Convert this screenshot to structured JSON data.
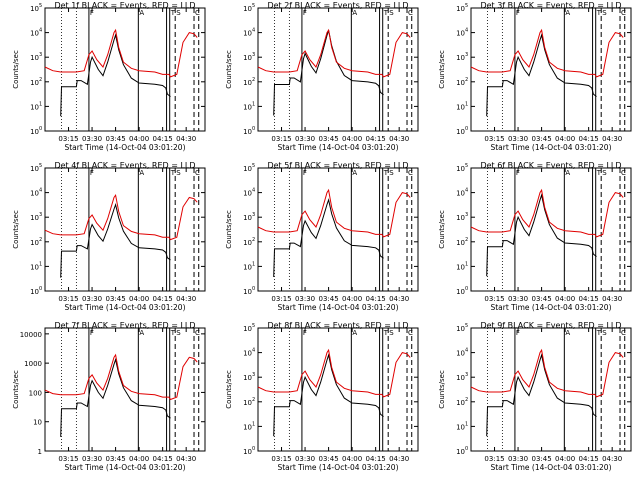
{
  "figure": {
    "start_time_label": "Start Time (14-Oct-04 03:01:20)",
    "ylabel": "Counts/sec",
    "colors": {
      "events": "#000000",
      "lld": "#e00000"
    },
    "x_ticks": [
      "03:15",
      "03:30",
      "03:45",
      "04:00",
      "04:15",
      "04:30"
    ],
    "x_tick_minutes": [
      15,
      30,
      45,
      60,
      75,
      90
    ],
    "xlim_minutes": [
      0,
      102
    ],
    "marker_labels": [
      "F",
      "A",
      "T",
      "S",
      "C"
    ]
  },
  "chart_data": [
    {
      "type": "line",
      "title": "Det 1f BLACK = Events, RED = LLD",
      "ylog": true,
      "ylim_exp": [
        0,
        5
      ],
      "ytick_style": "exp",
      "ytick_exps": [
        0,
        1,
        2,
        3,
        4,
        5
      ],
      "events_scale": 1.0,
      "lld_scale": 1.0
    },
    {
      "type": "line",
      "title": "Det 2f BLACK = Events, RED = LLD",
      "ylog": true,
      "ylim_exp": [
        0,
        5
      ],
      "ytick_style": "exp",
      "ytick_exps": [
        0,
        1,
        2,
        3,
        4,
        5
      ],
      "events_scale": 1.05,
      "lld_scale": 1.0
    },
    {
      "type": "line",
      "title": "Det 3f BLACK = Events, RED = LLD",
      "ylog": true,
      "ylim_exp": [
        0,
        5
      ],
      "ytick_style": "exp",
      "ytick_exps": [
        0,
        1,
        2,
        3,
        4,
        5
      ],
      "events_scale": 1.0,
      "lld_scale": 1.0
    },
    {
      "type": "line",
      "title": "Det 4f BLACK = Events, RED = LLD",
      "ylog": true,
      "ylim_exp": [
        0,
        5
      ],
      "ytick_style": "exp",
      "ytick_exps": [
        0,
        1,
        2,
        3,
        4,
        5
      ],
      "events_scale": 0.9,
      "lld_scale": 0.95
    },
    {
      "type": "line",
      "title": "Det 5f BLACK = Events, RED = LLD",
      "ylog": true,
      "ylim_exp": [
        0,
        5
      ],
      "ytick_style": "exp",
      "ytick_exps": [
        0,
        1,
        2,
        3,
        4,
        5
      ],
      "events_scale": 0.95,
      "lld_scale": 1.0
    },
    {
      "type": "line",
      "title": "Det 6f BLACK = Events, RED = LLD",
      "ylog": true,
      "ylim_exp": [
        0,
        5
      ],
      "ytick_style": "exp",
      "ytick_exps": [
        0,
        1,
        2,
        3,
        4,
        5
      ],
      "events_scale": 1.0,
      "lld_scale": 1.0
    },
    {
      "type": "line",
      "title": "Det 7f BLACK = Events, RED = LLD",
      "ylog": true,
      "ylim_exp": [
        0,
        4.2
      ],
      "ytick_style": "plain",
      "ytick_labels": [
        "1",
        "10",
        "100",
        "1000",
        "10000"
      ],
      "ytick_exps": [
        0,
        1,
        2,
        3,
        4
      ],
      "events_scale": 0.8,
      "lld_scale": 0.8
    },
    {
      "type": "line",
      "title": "Det 8f BLACK = Events, RED = LLD",
      "ylog": true,
      "ylim_exp": [
        0,
        5
      ],
      "ytick_style": "exp",
      "ytick_exps": [
        0,
        1,
        2,
        3,
        4,
        5
      ],
      "events_scale": 1.0,
      "lld_scale": 1.0
    },
    {
      "type": "line",
      "title": "Det 9f BLACK = Events, RED = LLD",
      "ylog": true,
      "ylim_exp": [
        0,
        5
      ],
      "ytick_style": "exp",
      "ytick_exps": [
        0,
        1,
        2,
        3,
        4,
        5
      ],
      "events_scale": 1.0,
      "lld_scale": 1.0
    }
  ],
  "series_shape": {
    "events_x_minutes": [
      10,
      10.5,
      20,
      20.5,
      23,
      27,
      29,
      30,
      34,
      37,
      40,
      44,
      45,
      47,
      50,
      55,
      60,
      70,
      75,
      77,
      78,
      80
    ],
    "events_log": [
      0.6,
      1.8,
      1.8,
      2.05,
      2.05,
      1.9,
      2.8,
      3.0,
      2.5,
      2.25,
      2.8,
      3.7,
      3.9,
      3.3,
      2.7,
      2.15,
      1.95,
      1.9,
      1.85,
      1.75,
      1.5,
      1.4
    ],
    "lld_x_minutes": [
      0,
      5,
      10,
      15,
      20,
      25,
      28,
      30,
      33,
      37,
      40,
      44,
      45,
      47,
      50,
      55,
      60,
      70,
      75,
      79,
      80,
      84,
      88,
      92,
      95,
      97
    ],
    "lld_log": [
      2.6,
      2.45,
      2.4,
      2.4,
      2.4,
      2.45,
      3.1,
      3.25,
      2.9,
      2.6,
      3.1,
      4.0,
      4.1,
      3.4,
      2.8,
      2.55,
      2.45,
      2.4,
      2.3,
      2.3,
      2.2,
      2.3,
      3.6,
      4.0,
      3.95,
      3.8
    ]
  }
}
